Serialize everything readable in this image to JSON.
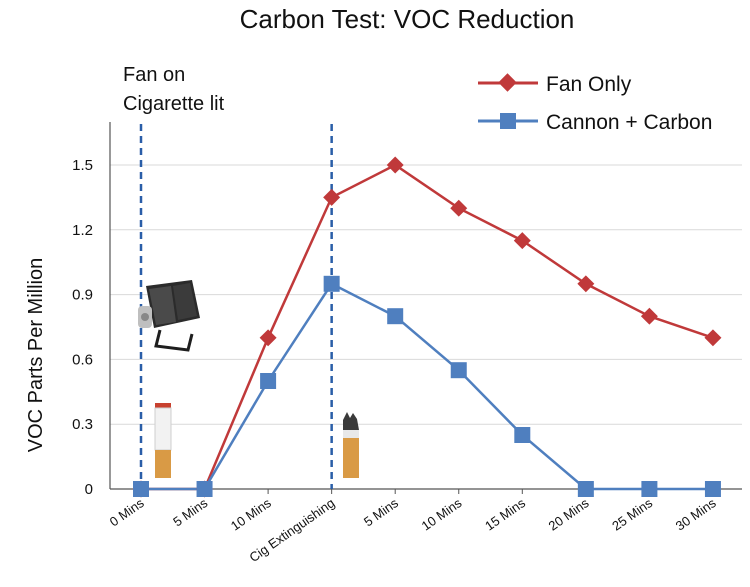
{
  "chart_data": {
    "type": "line",
    "title": "Carbon Test: VOC Reduction",
    "ylabel": "VOC Parts Per Million",
    "xlabel": "",
    "ylim": [
      0,
      1.65
    ],
    "yticks": [
      "0",
      "0.3",
      "0.6",
      "0.9",
      "1.2",
      "1.5"
    ],
    "categories": [
      "0 Mins",
      "5 Mins",
      "10 Mins",
      "Cig Extinguishing",
      "5 Mins",
      "10 Mins",
      "15 Mins",
      "20 Mins",
      "25 Mins",
      "30 Mins"
    ],
    "grid": "horizontal",
    "legend": "top-right",
    "series": [
      {
        "name": "Fan Only",
        "color": "#c0393a",
        "marker": "diamond",
        "values": [
          0,
          0,
          0.7,
          1.35,
          1.5,
          1.3,
          1.15,
          0.95,
          0.8,
          0.7
        ]
      },
      {
        "name": "Cannon + Carbon",
        "color": "#4f7fbf",
        "marker": "square",
        "values": [
          0,
          0,
          0.5,
          0.95,
          0.8,
          0.55,
          0.25,
          0,
          0,
          0
        ]
      }
    ],
    "annotations": {
      "line1": "Fan on",
      "line2": "Cigarette lit"
    },
    "markers": [
      {
        "category": "0 Mins",
        "style": "dashed",
        "color": "#2a5ea8"
      },
      {
        "category": "Cig Extinguishing",
        "style": "dashed",
        "color": "#2a5ea8"
      }
    ],
    "images": [
      "camera-icon",
      "cigarette-lit-icon",
      "cigarette-extinguished-icon"
    ]
  }
}
